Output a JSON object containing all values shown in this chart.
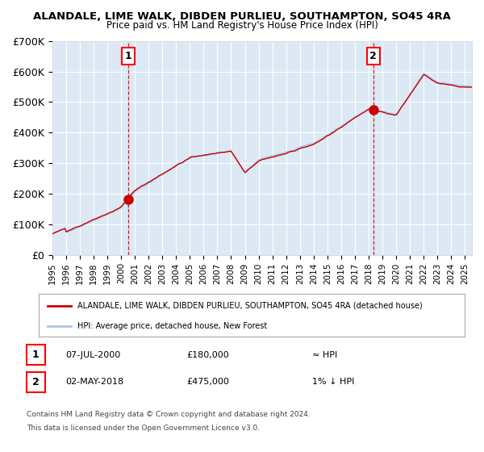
{
  "title": "ALANDALE, LIME WALK, DIBDEN PURLIEU, SOUTHAMPTON, SO45 4RA",
  "subtitle": "Price paid vs. HM Land Registry's House Price Index (HPI)",
  "legend_line1": "ALANDALE, LIME WALK, DIBDEN PURLIEU, SOUTHAMPTON, SO45 4RA (detached house)",
  "legend_line2": "HPI: Average price, detached house, New Forest",
  "annotation1_date": "07-JUL-2000",
  "annotation1_price": "£180,000",
  "annotation1_hpi": "≈ HPI",
  "annotation2_date": "02-MAY-2018",
  "annotation2_price": "£475,000",
  "annotation2_hpi": "1% ↓ HPI",
  "footer1": "Contains HM Land Registry data © Crown copyright and database right 2024.",
  "footer2": "This data is licensed under the Open Government Licence v3.0.",
  "plot_bg_color": "#dce9f5",
  "line_color_price": "#cc0000",
  "line_color_hpi": "#aac4e0",
  "marker_color": "#cc0000",
  "vline_color": "#cc0000",
  "ylim_min": 0,
  "ylim_max": 700000,
  "yticks": [
    0,
    100000,
    200000,
    300000,
    400000,
    500000,
    600000,
    700000
  ],
  "ytick_labels": [
    "£0",
    "£100K",
    "£200K",
    "£300K",
    "£400K",
    "£500K",
    "£600K",
    "£700K"
  ],
  "sale1_year": 2000.52,
  "sale1_value": 180000,
  "sale2_year": 2018.33,
  "sale2_value": 475000,
  "figsize": [
    6.0,
    5.6
  ],
  "dpi": 100
}
